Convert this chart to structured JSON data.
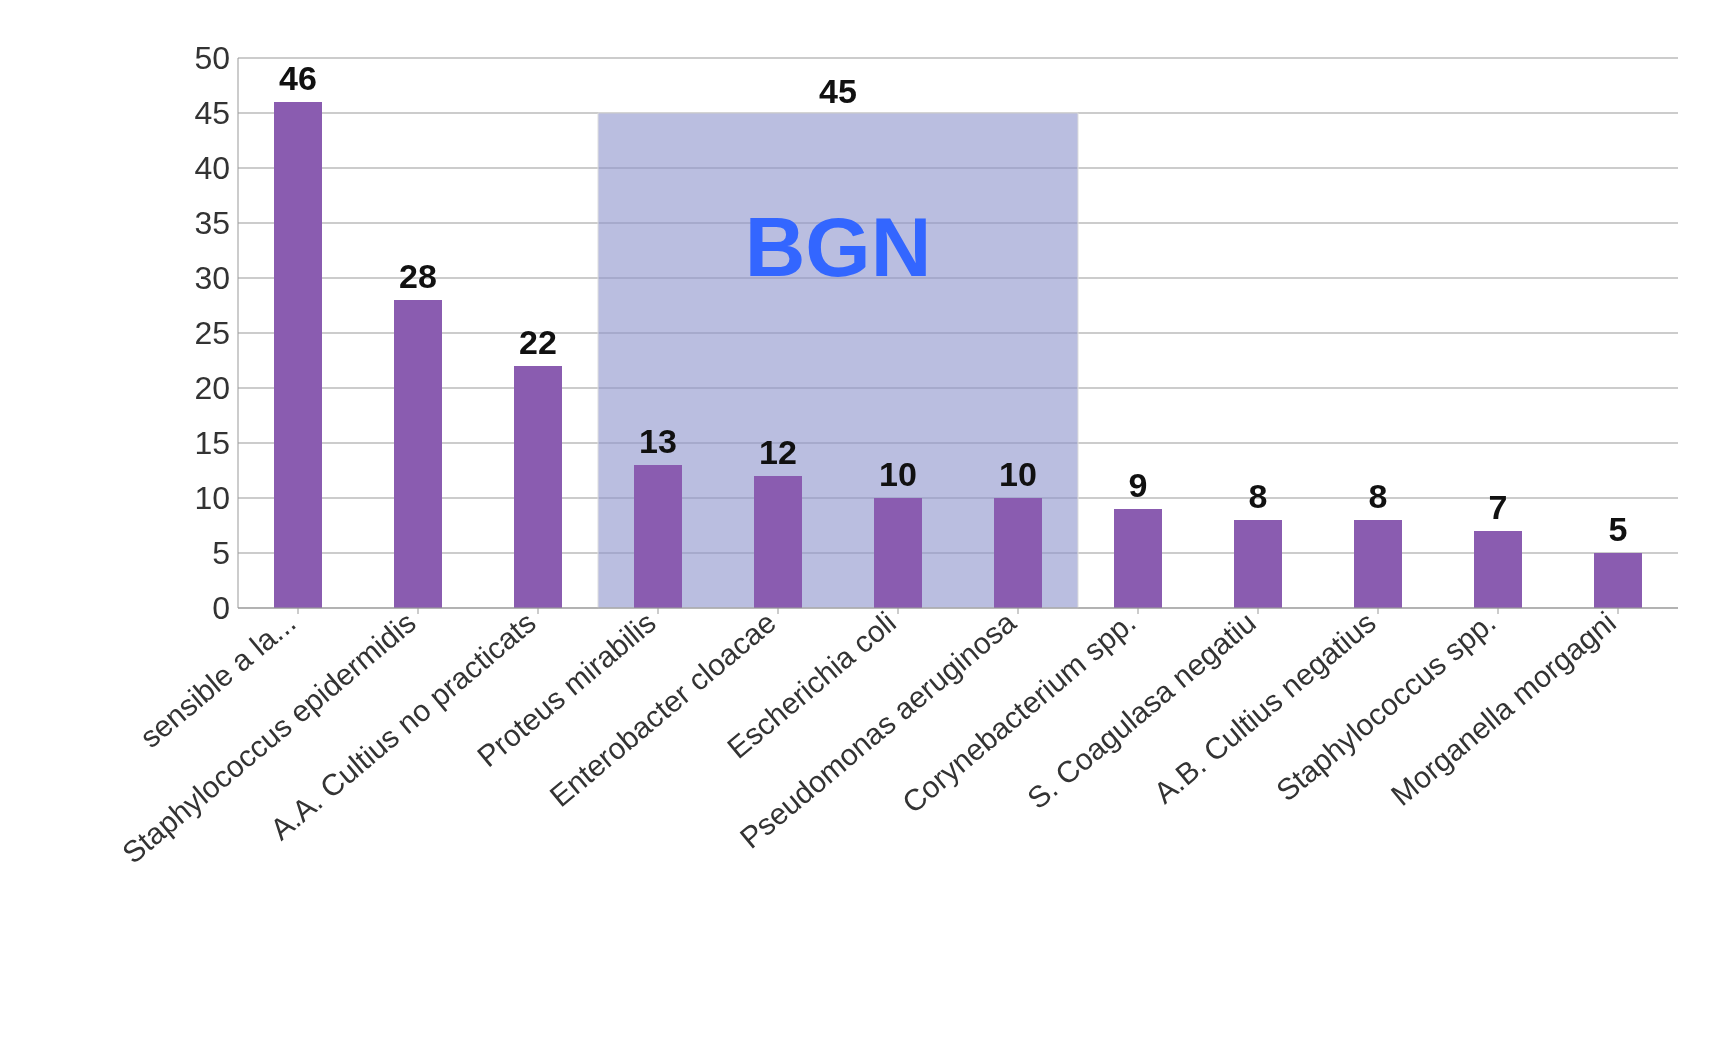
{
  "chart_data": {
    "type": "bar",
    "categories": [
      "sensible a la...",
      "Staphylococcus epidermidis",
      "A.A. Cultius no practicats",
      "Proteus mirabilis",
      "Enterobacter cloacae",
      "Escherichia coli",
      "Pseudomonas aeruginosa",
      "Corynebacterium spp.",
      "S. Coagulasa negatiu",
      "A.B. Cultius negatius",
      "Staphylococcus spp.",
      "Morganella morgagni"
    ],
    "values": [
      46,
      28,
      22,
      13,
      12,
      10,
      10,
      9,
      8,
      8,
      7,
      5
    ],
    "color": "#8a5cb0",
    "ylim": [
      0,
      50
    ],
    "yticks": [
      0,
      5,
      10,
      15,
      20,
      25,
      30,
      35,
      40,
      45,
      50
    ],
    "grid": "y",
    "data_labels": true,
    "legend": false,
    "bands": [
      {
        "axis": "x",
        "from": "Proteus mirabilis",
        "to": "Pseudomonas aeruginosa",
        "label": "BGN",
        "color": "#8c92cc"
      }
    ],
    "annotations": [
      {
        "text": "45",
        "y": 45
      }
    ]
  }
}
